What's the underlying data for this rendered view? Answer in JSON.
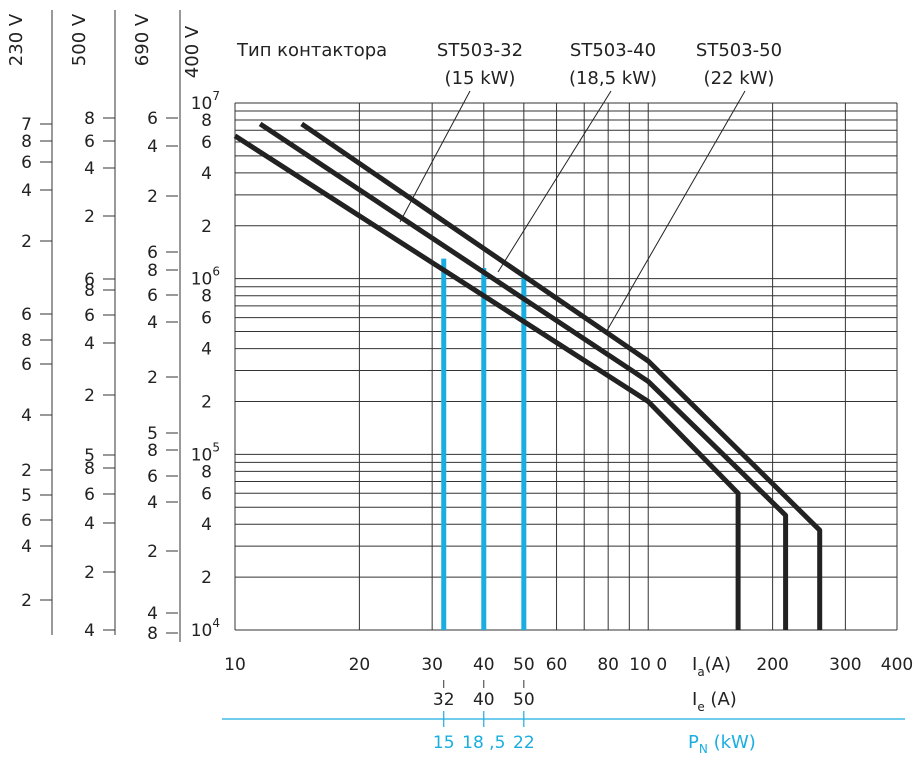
{
  "chart_data": {
    "type": "line",
    "title": "Тип контактора",
    "x_axis": {
      "label_main": "I",
      "label_sub": "a",
      "label_unit": "(A)",
      "scale": "log",
      "range": [
        10,
        400
      ],
      "ticks": [
        10,
        20,
        30,
        40,
        50,
        60,
        80,
        100,
        200,
        300,
        400
      ],
      "tick_labels": [
        "10",
        "20",
        "30",
        "40",
        "50",
        "60",
        "80",
        "10 0",
        "200",
        "300",
        "400"
      ]
    },
    "y_axis": {
      "scale": "log",
      "range": [
        10000,
        10000000
      ],
      "voltage_label": "400 V"
    },
    "ie_axis": {
      "label_main": "I",
      "label_sub": "e",
      "label_unit": " (A)",
      "values": [
        "32",
        "40",
        "50"
      ],
      "positions": [
        32,
        40,
        50
      ]
    },
    "pn_axis": {
      "label_main": "P",
      "label_sub": "N",
      "label_unit": " (kW)",
      "values": [
        "15",
        "18 ,5",
        "22"
      ],
      "positions": [
        32,
        40,
        50
      ]
    },
    "series": [
      {
        "name": "ST503-32",
        "power": "(15 kW)",
        "points": [
          [
            10,
            6500000
          ],
          [
            100,
            200000
          ],
          [
            165,
            60000
          ],
          [
            165,
            10000
          ]
        ],
        "rated_current": 32,
        "rated_value": 1300000
      },
      {
        "name": "ST503-40",
        "power": "(18,5 kW)",
        "points": [
          [
            11.5,
            7600000
          ],
          [
            100,
            260000
          ],
          [
            215,
            45000
          ],
          [
            215,
            10000
          ]
        ],
        "rated_current": 40,
        "rated_value": 1150000
      },
      {
        "name": "ST503-50",
        "power": "(22 kW)",
        "points": [
          [
            14.5,
            7600000
          ],
          [
            100,
            340000
          ],
          [
            260,
            37000
          ],
          [
            260,
            10000
          ]
        ],
        "rated_current": 50,
        "rated_value": 1050000
      }
    ],
    "voltage_scales": [
      {
        "voltage": "230 V",
        "tick_ys": [
          124,
          141,
          162,
          190,
          241,
          314,
          340,
          364,
          415,
          470,
          495,
          520,
          546,
          600
        ],
        "tick_labels": [
          "7",
          "8",
          "6",
          "4",
          "2",
          "6",
          "8",
          "6",
          "4",
          "2",
          "5",
          "6",
          "4",
          "2"
        ]
      },
      {
        "voltage": "500 V",
        "tick_ys": [
          118,
          141,
          168,
          216,
          279,
          290,
          315,
          343,
          395,
          455,
          468,
          494,
          523,
          572,
          630
        ],
        "tick_labels": [
          "8",
          "6",
          "4",
          "2",
          "6",
          "8",
          "6",
          "4",
          "2",
          "5",
          "8",
          "6",
          "4",
          "2",
          "4"
        ]
      },
      {
        "voltage": "690 V",
        "tick_ys": [
          118,
          146,
          196,
          252,
          270,
          295,
          322,
          377,
          433,
          450,
          476,
          502,
          551,
          613,
          633
        ],
        "tick_labels": [
          "6",
          "4",
          "2",
          "6",
          "8",
          "6",
          "4",
          "2",
          "5",
          "8",
          "6",
          "4",
          "2",
          "4",
          "8"
        ]
      }
    ],
    "legend": "top",
    "grid": true
  },
  "colors": {
    "curve": "#222222",
    "grid": "#333333",
    "rated_marker": "#1aaee0",
    "pn_axis": "#1aaee0"
  }
}
